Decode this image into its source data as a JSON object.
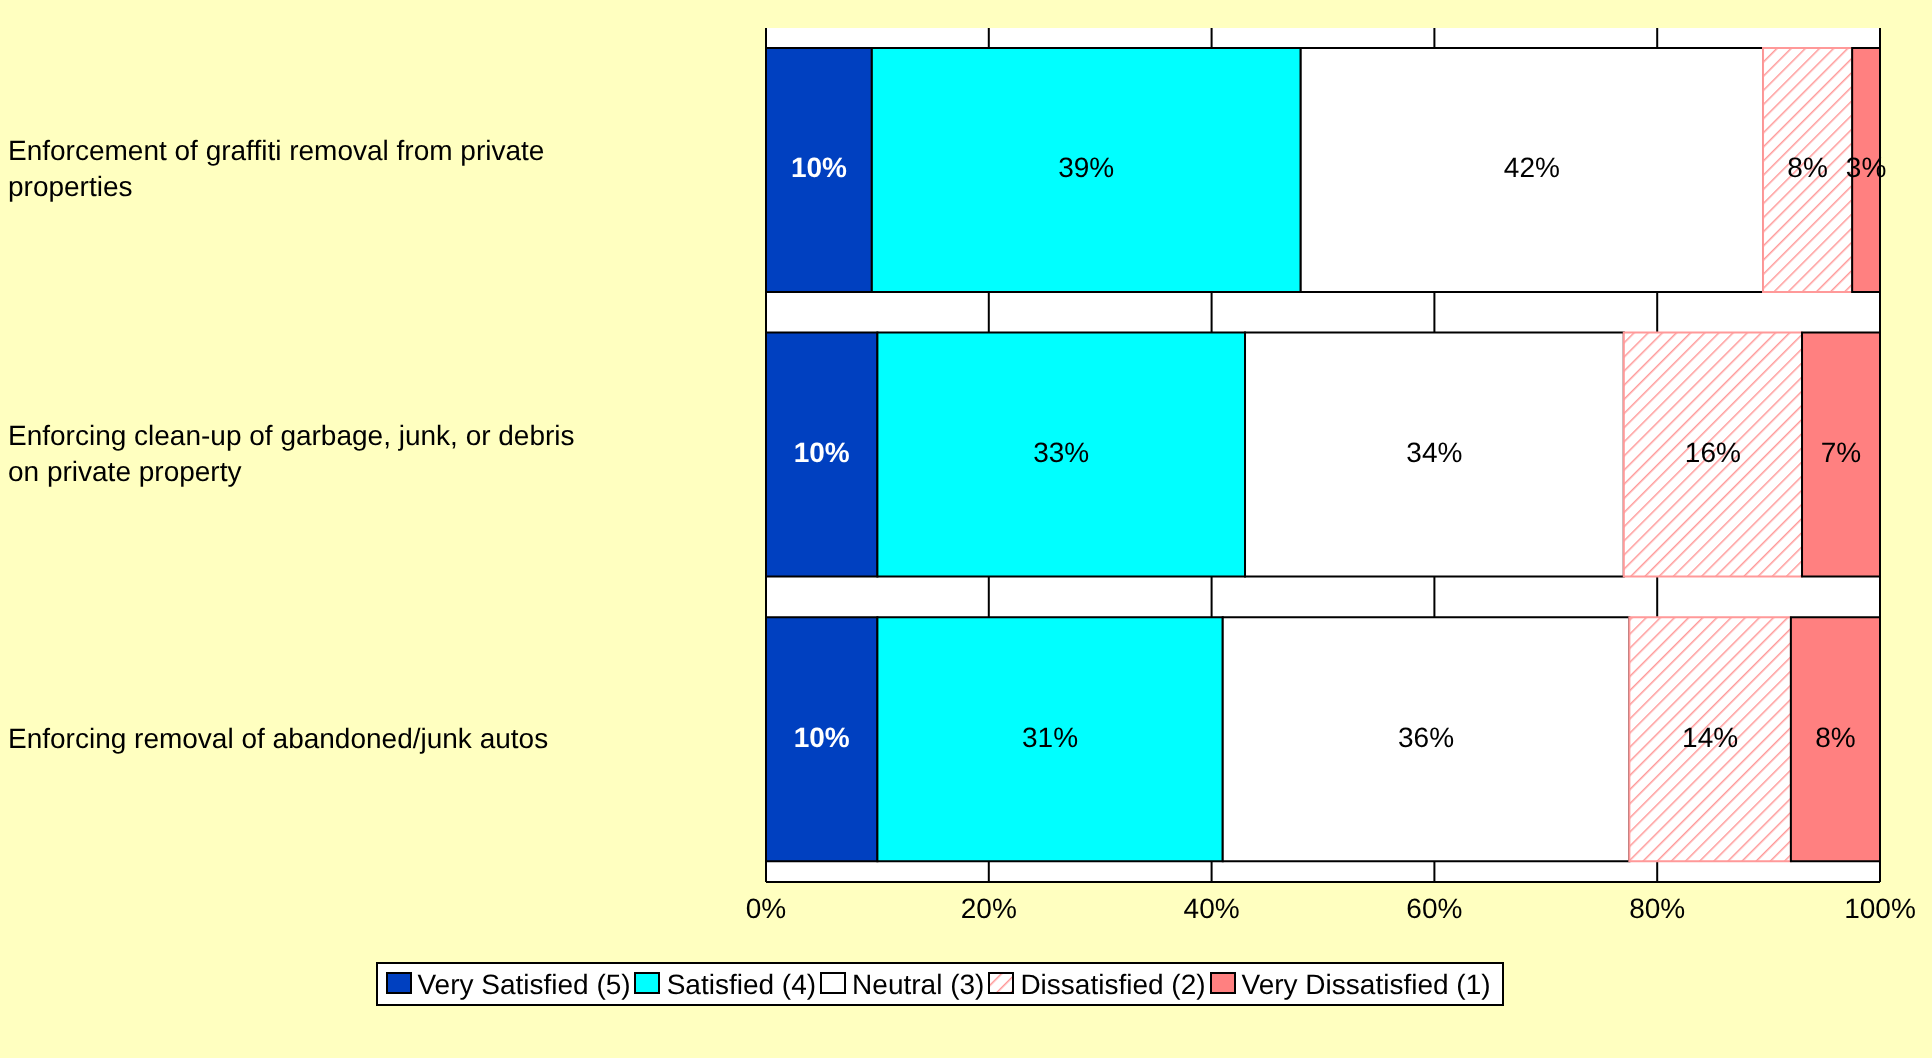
{
  "chart_data": {
    "type": "bar",
    "orientation": "horizontal",
    "stacked": true,
    "categories": [
      "Enforcement of graffiti removal from private properties",
      "Enforcing clean-up of garbage, junk, or debris on private property",
      "Enforcing removal of abandoned/junk autos"
    ],
    "series": [
      {
        "name": "Very Satisfied (5)",
        "color": "#0040c0",
        "values": [
          9.5,
          10,
          10
        ],
        "value_labels": [
          "10%",
          "10%",
          "10%"
        ]
      },
      {
        "name": "Satisfied (4)",
        "color": "#00ffff",
        "values": [
          38.5,
          33,
          31
        ],
        "value_labels": [
          "39%",
          "33%",
          "31%"
        ]
      },
      {
        "name": "Neutral (3)",
        "color": "#ffffff",
        "values": [
          41.5,
          34,
          36.5
        ],
        "value_labels": [
          "42%",
          "34%",
          "36%"
        ]
      },
      {
        "name": "Dissatisfied (2)",
        "color": "#ff9999",
        "values": [
          8,
          16,
          14.5
        ],
        "value_labels": [
          "8%",
          "16%",
          "14%"
        ]
      },
      {
        "name": "Very Dissatisfied (1)",
        "color": "#ff8080",
        "values": [
          2.5,
          7,
          8
        ],
        "value_labels": [
          "3%",
          "7%",
          "8%"
        ]
      }
    ],
    "xlim": [
      0,
      100
    ],
    "xticks": [
      {
        "value": 0,
        "label": "0%"
      },
      {
        "value": 20,
        "label": "20%"
      },
      {
        "value": 40,
        "label": "40%"
      },
      {
        "value": 60,
        "label": "60%"
      },
      {
        "value": 80,
        "label": "80%"
      },
      {
        "value": 100,
        "label": "100%"
      }
    ],
    "legend": "bottom",
    "grid": "x"
  }
}
